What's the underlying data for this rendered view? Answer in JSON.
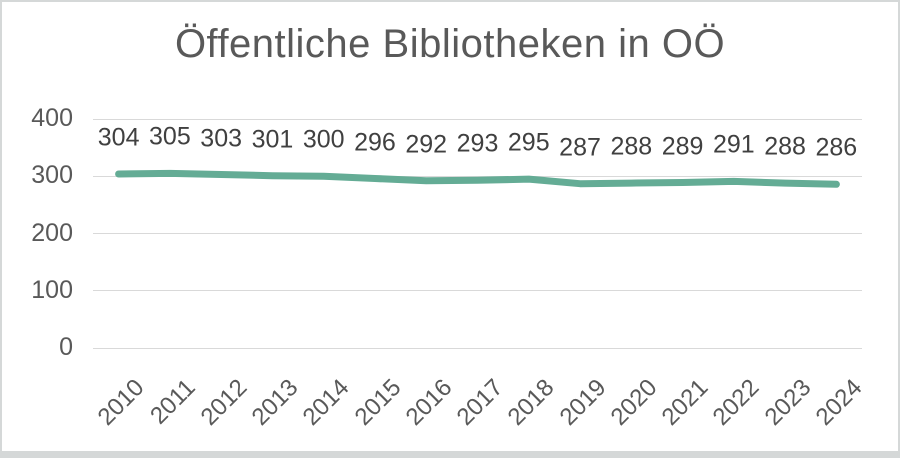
{
  "chart_data": {
    "type": "line",
    "title": "Öffentliche Bibliotheken in OÖ",
    "categories": [
      "2010",
      "2011",
      "2012",
      "2013",
      "2014",
      "2015",
      "2016",
      "2017",
      "2018",
      "2019",
      "2020",
      "2021",
      "2022",
      "2023",
      "2024"
    ],
    "values": [
      304,
      305,
      303,
      301,
      300,
      296,
      292,
      293,
      295,
      287,
      288,
      289,
      291,
      288,
      286
    ],
    "xlabel": "",
    "ylabel": "",
    "ylim": [
      0,
      400
    ],
    "yticks": [
      0,
      100,
      200,
      300,
      400
    ],
    "grid": true,
    "legend_position": "none",
    "data_labels_shown": true,
    "line_color": "#64AC95",
    "gridline_color": "#D9D9D9",
    "title_color": "#595959",
    "axis_label_color": "#595959",
    "data_label_color": "#404040",
    "frame_border_color": "#D5D8D8",
    "background_color": "#FFFFFF"
  }
}
